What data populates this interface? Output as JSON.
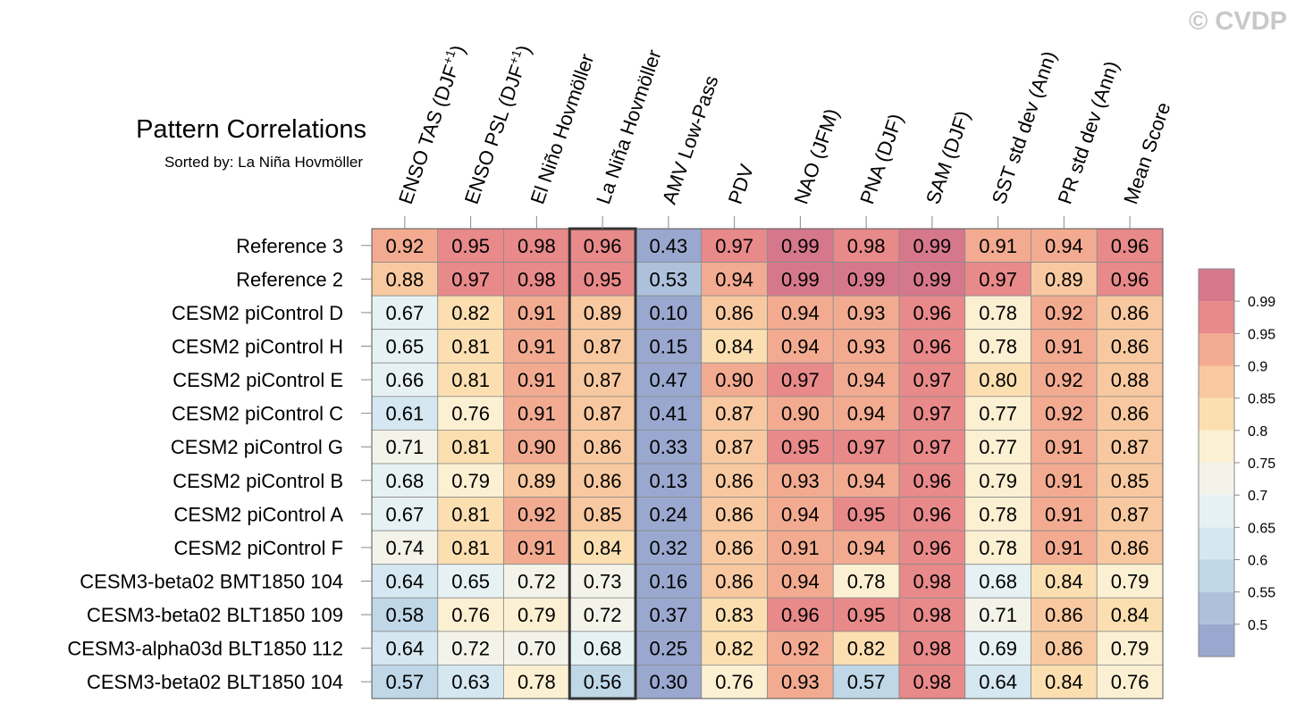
{
  "watermark": "© CVDP",
  "chart_data": {
    "type": "heatmap",
    "title": "Pattern Correlations",
    "subtitle": "Sorted by: La Niña Hovmöller",
    "highlight_column": "La Niña Hovmöller",
    "columns": [
      {
        "pre": "ENSO TAS (DJF",
        "sup": "+1",
        "post": ")"
      },
      {
        "pre": "ENSO PSL (DJF",
        "sup": "+1",
        "post": ")"
      },
      {
        "pre": "El Niño Hovmöller",
        "sup": "",
        "post": ""
      },
      {
        "pre": "La Niña Hovmöller",
        "sup": "",
        "post": ""
      },
      {
        "pre": "AMV Low-Pass",
        "sup": "",
        "post": ""
      },
      {
        "pre": "PDV",
        "sup": "",
        "post": ""
      },
      {
        "pre": "NAO (JFM)",
        "sup": "",
        "post": ""
      },
      {
        "pre": "PNA (DJF)",
        "sup": "",
        "post": ""
      },
      {
        "pre": "SAM (DJF)",
        "sup": "",
        "post": ""
      },
      {
        "pre": "SST std dev (Ann)",
        "sup": "",
        "post": ""
      },
      {
        "pre": "PR std dev (Ann)",
        "sup": "",
        "post": ""
      },
      {
        "pre": "Mean Score",
        "sup": "",
        "post": ""
      }
    ],
    "rows": [
      "Reference 3",
      "Reference 2",
      "CESM2 piControl D",
      "CESM2 piControl H",
      "CESM2 piControl E",
      "CESM2 piControl C",
      "CESM2 piControl G",
      "CESM2 piControl B",
      "CESM2 piControl A",
      "CESM2 piControl F",
      "CESM3-beta02 BMT1850 104",
      "CESM3-beta02 BLT1850 109",
      "CESM3-alpha03d BLT1850 112",
      "CESM3-beta02 BLT1850 104"
    ],
    "values": [
      [
        "0.92",
        "0.95",
        "0.98",
        "0.96",
        "0.43",
        "0.97",
        "0.99",
        "0.98",
        "0.99",
        "0.91",
        "0.94",
        "0.96"
      ],
      [
        "0.88",
        "0.97",
        "0.98",
        "0.95",
        "0.53",
        "0.94",
        "0.99",
        "0.99",
        "0.99",
        "0.97",
        "0.89",
        "0.96"
      ],
      [
        "0.67",
        "0.82",
        "0.91",
        "0.89",
        "0.10",
        "0.86",
        "0.94",
        "0.93",
        "0.96",
        "0.78",
        "0.92",
        "0.86"
      ],
      [
        "0.65",
        "0.81",
        "0.91",
        "0.87",
        "0.15",
        "0.84",
        "0.94",
        "0.93",
        "0.96",
        "0.78",
        "0.91",
        "0.86"
      ],
      [
        "0.66",
        "0.81",
        "0.91",
        "0.87",
        "0.47",
        "0.90",
        "0.97",
        "0.94",
        "0.97",
        "0.80",
        "0.92",
        "0.88"
      ],
      [
        "0.61",
        "0.76",
        "0.91",
        "0.87",
        "0.41",
        "0.87",
        "0.90",
        "0.94",
        "0.97",
        "0.77",
        "0.92",
        "0.86"
      ],
      [
        "0.71",
        "0.81",
        "0.90",
        "0.86",
        "0.33",
        "0.87",
        "0.95",
        "0.97",
        "0.97",
        "0.77",
        "0.91",
        "0.87"
      ],
      [
        "0.68",
        "0.79",
        "0.89",
        "0.86",
        "0.13",
        "0.86",
        "0.93",
        "0.94",
        "0.96",
        "0.79",
        "0.91",
        "0.85"
      ],
      [
        "0.67",
        "0.81",
        "0.92",
        "0.85",
        "0.24",
        "0.86",
        "0.94",
        "0.95",
        "0.96",
        "0.78",
        "0.91",
        "0.87"
      ],
      [
        "0.74",
        "0.81",
        "0.91",
        "0.84",
        "0.32",
        "0.86",
        "0.91",
        "0.94",
        "0.96",
        "0.78",
        "0.91",
        "0.86"
      ],
      [
        "0.64",
        "0.65",
        "0.72",
        "0.73",
        "0.16",
        "0.86",
        "0.94",
        "0.78",
        "0.98",
        "0.68",
        "0.84",
        "0.79"
      ],
      [
        "0.58",
        "0.76",
        "0.79",
        "0.72",
        "0.37",
        "0.83",
        "0.96",
        "0.95",
        "0.98",
        "0.71",
        "0.86",
        "0.84"
      ],
      [
        "0.64",
        "0.72",
        "0.70",
        "0.68",
        "0.25",
        "0.82",
        "0.92",
        "0.82",
        "0.98",
        "0.69",
        "0.86",
        "0.79"
      ],
      [
        "0.57",
        "0.63",
        "0.78",
        "0.56",
        "0.30",
        "0.76",
        "0.93",
        "0.57",
        "0.98",
        "0.64",
        "0.84",
        "0.76"
      ]
    ],
    "colorbar": {
      "levels": [
        0.5,
        0.55,
        0.6,
        0.65,
        0.7,
        0.75,
        0.8,
        0.85,
        0.9,
        0.95,
        0.99
      ],
      "tick_labels": [
        "0.5",
        "0.55",
        "0.6",
        "0.65",
        "0.7",
        "0.75",
        "0.8",
        "0.85",
        "0.9",
        "0.95",
        "0.99"
      ],
      "colors": [
        "#9aa8cf",
        "#adc1dc",
        "#bfd7e7",
        "#d5e7f0",
        "#e6f1f4",
        "#f3f3ea",
        "#fcf0d3",
        "#fbdfb1",
        "#f8c9a0",
        "#f2ab91",
        "#e8898a",
        "#d6788b"
      ]
    }
  }
}
